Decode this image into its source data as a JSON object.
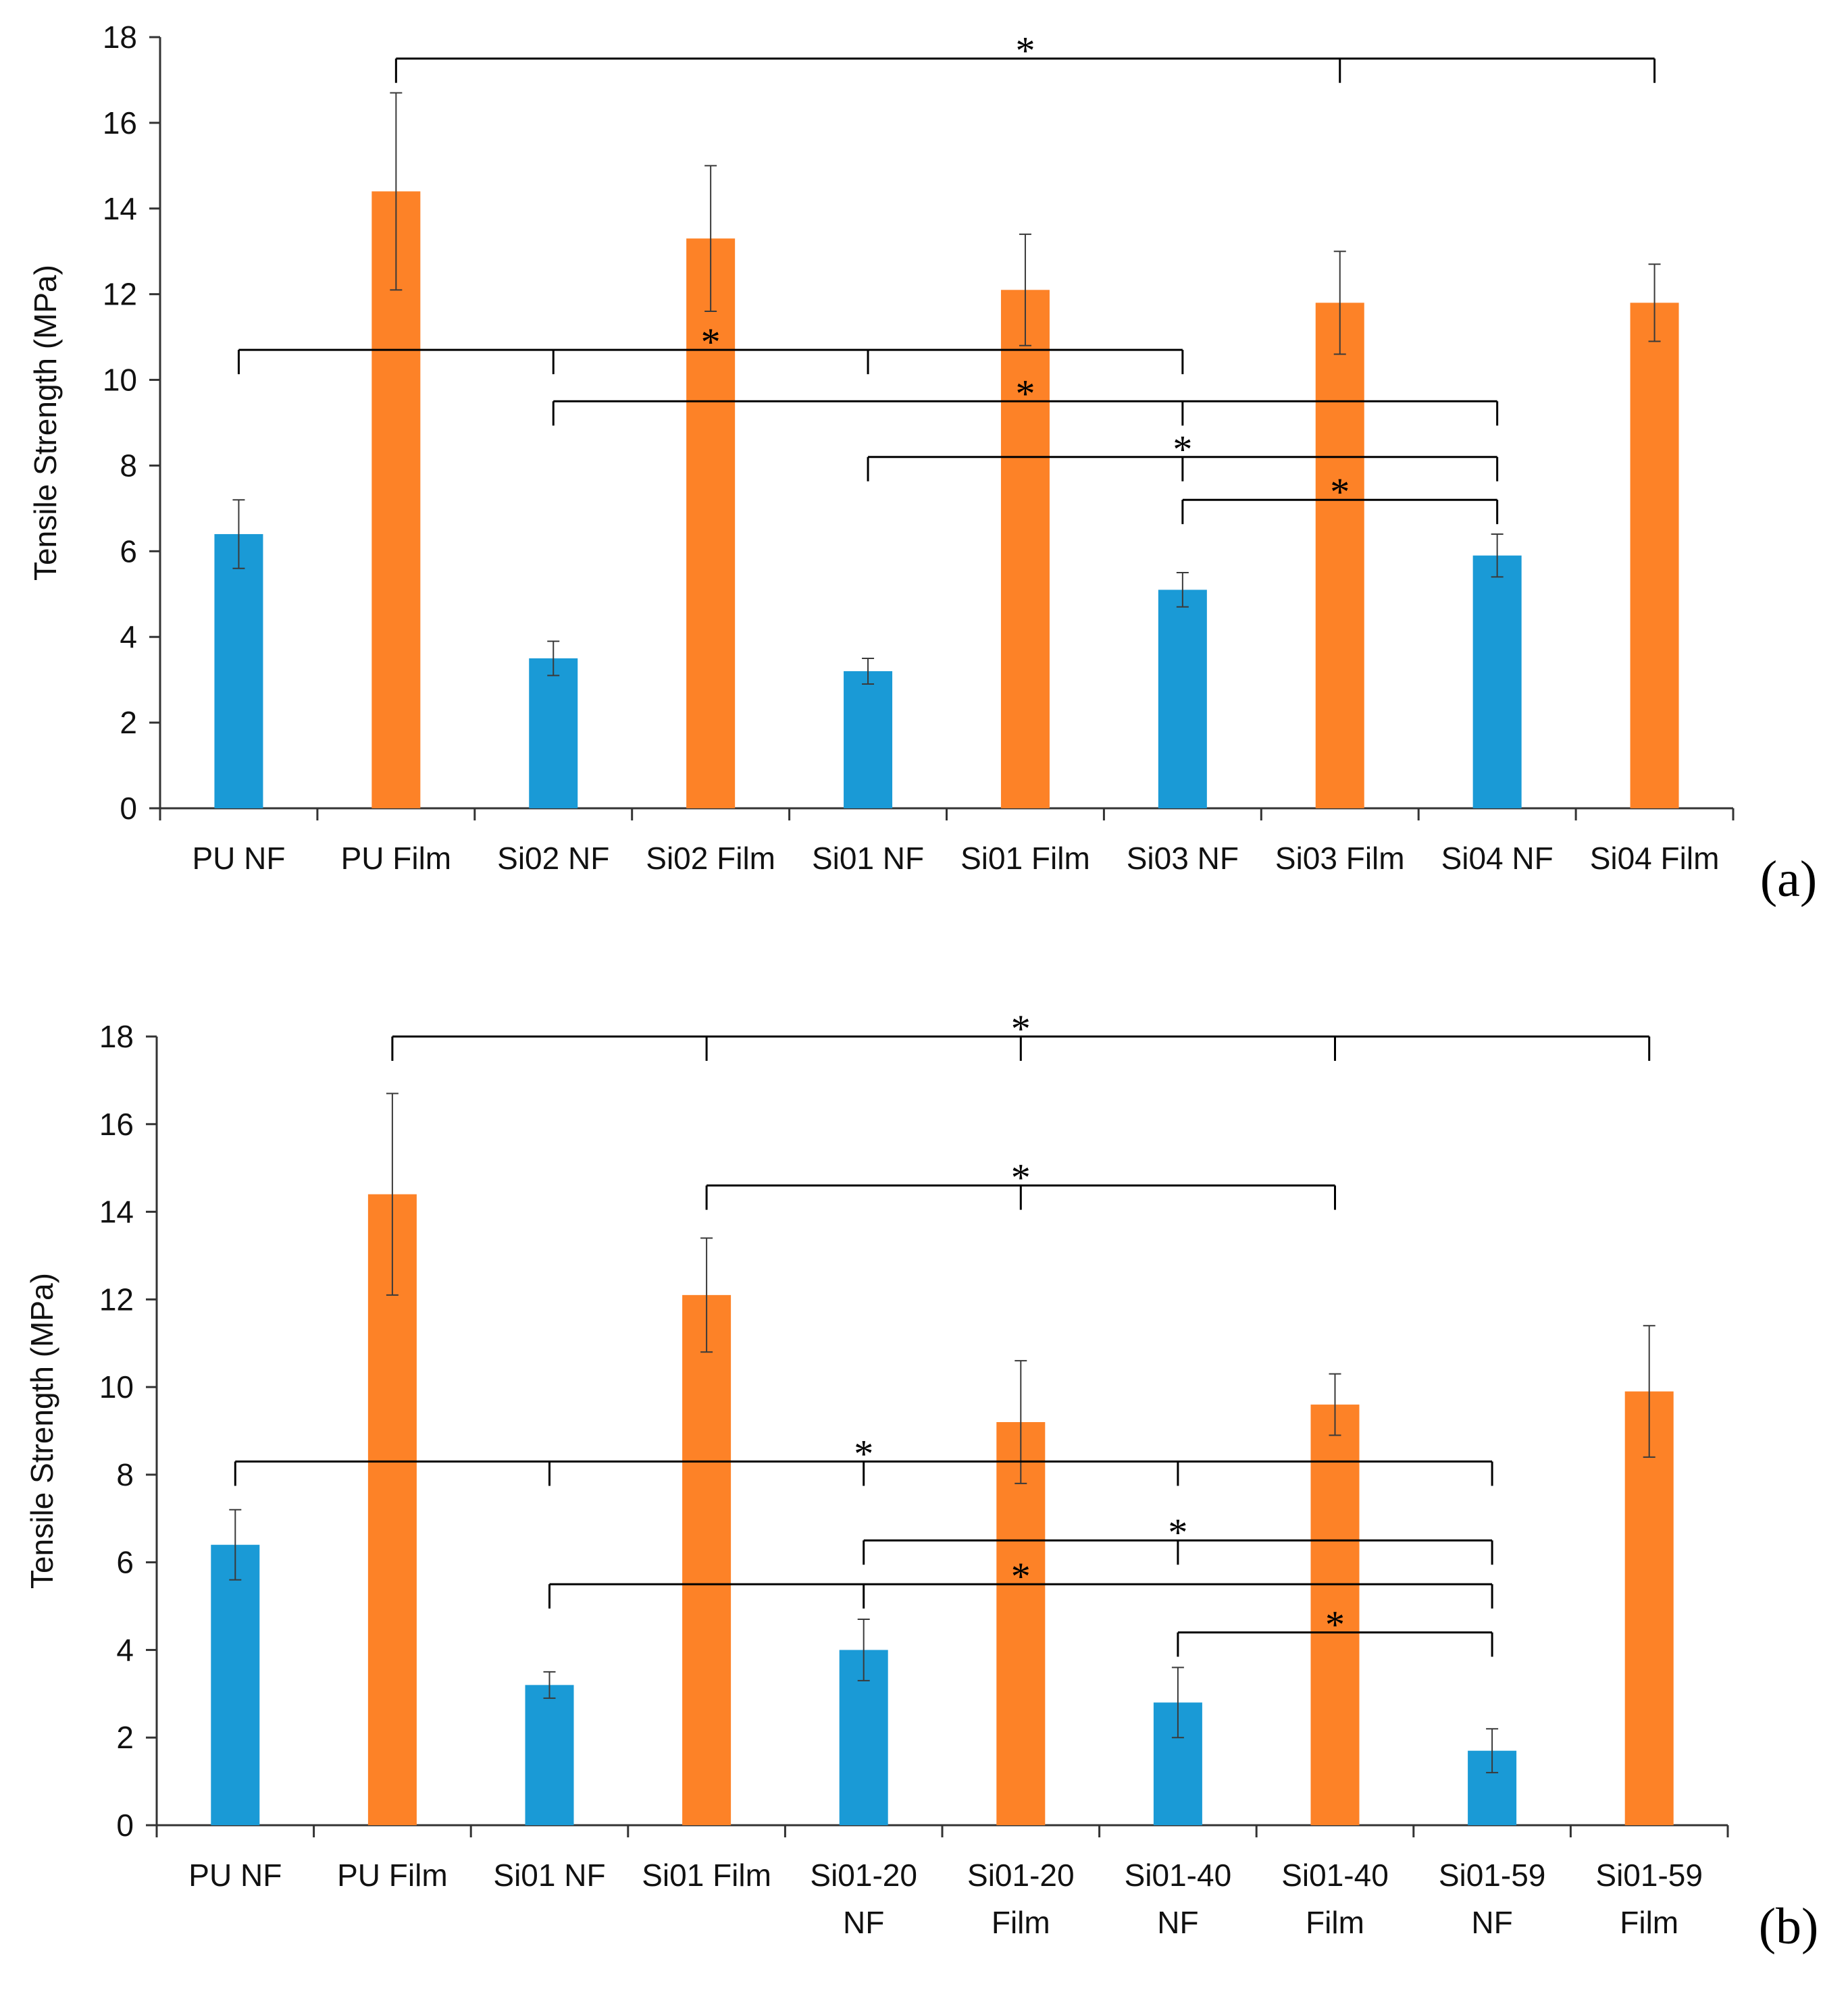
{
  "colors": {
    "nf": "#1a9ad6",
    "film": "#fd8227",
    "axis": "#333333",
    "bracket": "#000000"
  },
  "chart_data": [
    {
      "type": "bar",
      "panel_label": "(a)",
      "ylabel": "Tensile Strength (MPa)",
      "ylim": [
        0,
        18
      ],
      "yticks": [
        0,
        2,
        4,
        6,
        8,
        10,
        12,
        14,
        16,
        18
      ],
      "categories": [
        [
          "PU NF"
        ],
        [
          "PU Film"
        ],
        [
          "Si02 NF"
        ],
        [
          "Si02 Film"
        ],
        [
          "Si01 NF"
        ],
        [
          "Si01 Film"
        ],
        [
          "Si03 NF"
        ],
        [
          "Si03 Film"
        ],
        [
          "Si04 NF"
        ],
        [
          "Si04 Film"
        ]
      ],
      "series_type": [
        "nf",
        "film",
        "nf",
        "film",
        "nf",
        "film",
        "nf",
        "film",
        "nf",
        "film"
      ],
      "values": [
        6.4,
        14.4,
        3.5,
        13.3,
        3.2,
        12.1,
        5.1,
        11.8,
        5.9,
        11.8
      ],
      "errors": [
        0.8,
        2.3,
        0.4,
        1.7,
        0.3,
        1.3,
        0.4,
        1.2,
        0.5,
        0.9
      ],
      "significance": [
        {
          "label": "*",
          "y": 17.5,
          "members": [
            1,
            7,
            9
          ]
        },
        {
          "label": "*",
          "y": 10.7,
          "members": [
            0,
            2,
            4,
            6
          ]
        },
        {
          "label": "*",
          "y": 9.5,
          "members": [
            2,
            6,
            8
          ]
        },
        {
          "label": "*",
          "y": 8.2,
          "members": [
            4,
            6,
            8
          ]
        },
        {
          "label": "*",
          "y": 7.2,
          "members": [
            6,
            8
          ]
        }
      ]
    },
    {
      "type": "bar",
      "panel_label": "(b)",
      "ylabel": "Tensile Strength (MPa)",
      "ylim": [
        0,
        18
      ],
      "yticks": [
        0,
        2,
        4,
        6,
        8,
        10,
        12,
        14,
        16,
        18
      ],
      "categories": [
        [
          "PU NF"
        ],
        [
          "PU Film"
        ],
        [
          "Si01 NF"
        ],
        [
          "Si01 Film"
        ],
        [
          "Si01-20",
          "NF"
        ],
        [
          "Si01-20",
          "Film"
        ],
        [
          "Si01-40",
          "NF"
        ],
        [
          "Si01-40",
          "Film"
        ],
        [
          "Si01-59",
          "NF"
        ],
        [
          "Si01-59",
          "Film"
        ]
      ],
      "series_type": [
        "nf",
        "film",
        "nf",
        "film",
        "nf",
        "film",
        "nf",
        "film",
        "nf",
        "film"
      ],
      "values": [
        6.4,
        14.4,
        3.2,
        12.1,
        4.0,
        9.2,
        2.8,
        9.6,
        1.7,
        9.9
      ],
      "errors": [
        0.8,
        2.3,
        0.3,
        1.3,
        0.7,
        1.4,
        0.8,
        0.7,
        0.5,
        1.5
      ],
      "significance": [
        {
          "label": "*",
          "y": 18.0,
          "members": [
            1,
            3,
            5,
            7,
            9
          ]
        },
        {
          "label": "*",
          "y": 14.6,
          "members": [
            3,
            5,
            7
          ]
        },
        {
          "label": "*",
          "y": 8.3,
          "members": [
            0,
            2,
            4,
            6,
            8
          ]
        },
        {
          "label": "*",
          "y": 6.5,
          "members": [
            4,
            6,
            8
          ]
        },
        {
          "label": "*",
          "y": 5.5,
          "members": [
            2,
            4,
            8
          ]
        },
        {
          "label": "*",
          "y": 4.4,
          "members": [
            6,
            8
          ]
        }
      ]
    }
  ]
}
